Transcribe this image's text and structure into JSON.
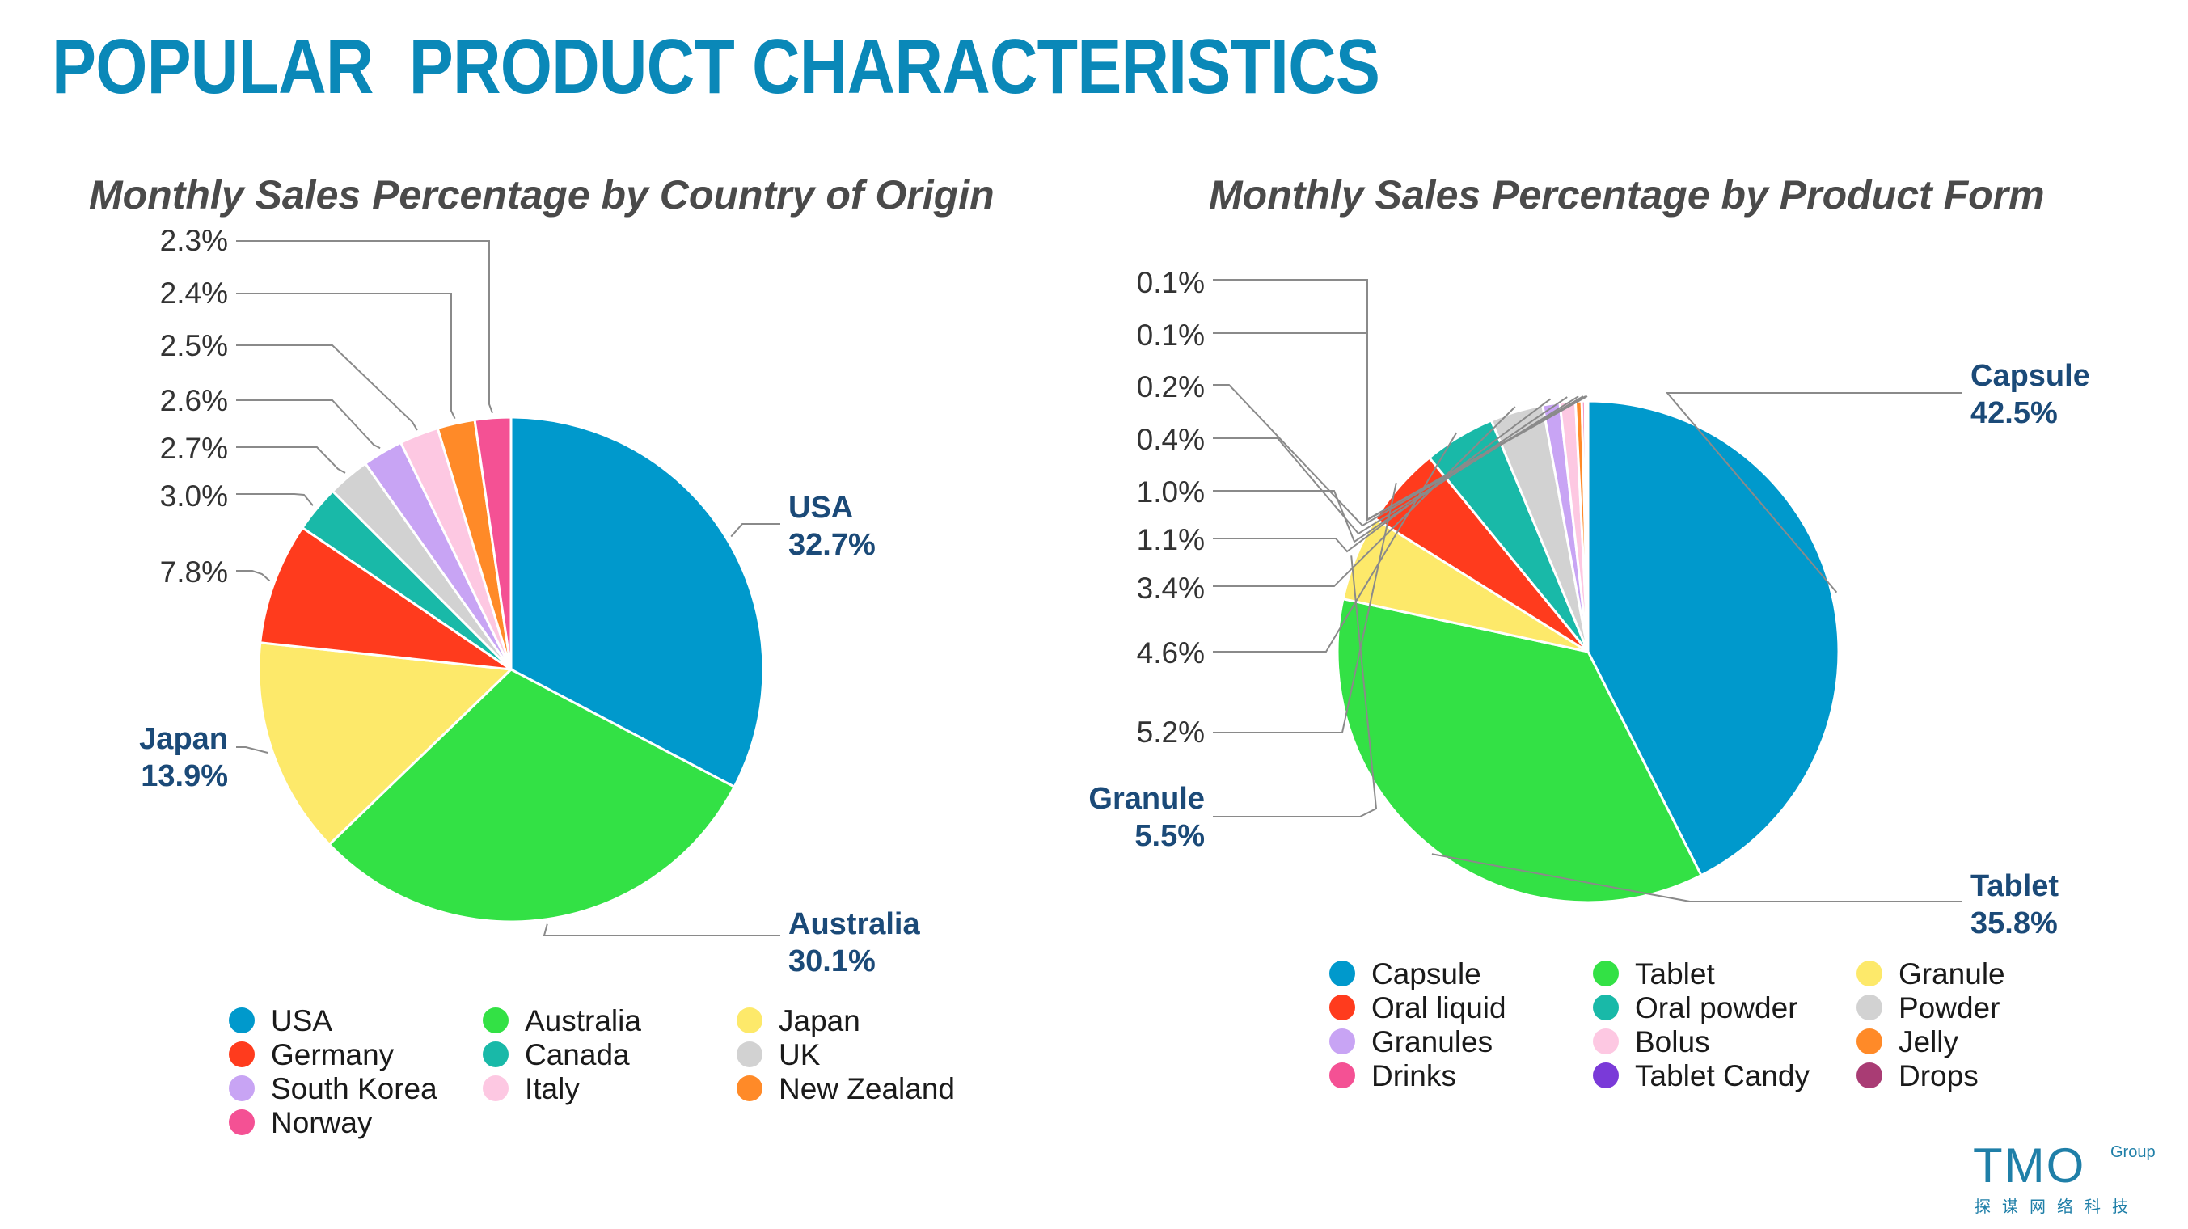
{
  "page": {
    "title": "POPULAR  PRODUCT CHARACTERISTICS"
  },
  "logo": {
    "main": "TMO",
    "group": "Group",
    "subtitle": "探谋网络科技"
  },
  "chart_data": [
    {
      "type": "pie",
      "title": "Monthly Sales Percentage by Country of Origin",
      "unit": "%",
      "slices": [
        {
          "label": "USA",
          "value": 32.7,
          "display": "32.7%",
          "color": "#0099cc",
          "highlight": true
        },
        {
          "label": "Australia",
          "value": 30.1,
          "display": "30.1%",
          "color": "#33e145",
          "highlight": true
        },
        {
          "label": "Japan",
          "value": 13.9,
          "display": "13.9%",
          "color": "#fde96a",
          "highlight": true
        },
        {
          "label": "Germany",
          "value": 7.8,
          "display": "7.8%",
          "color": "#ff3b1d",
          "highlight": false
        },
        {
          "label": "Canada",
          "value": 3.0,
          "display": "3.0%",
          "color": "#19b9a8",
          "highlight": false
        },
        {
          "label": "UK",
          "value": 2.7,
          "display": "2.7%",
          "color": "#d2d2d2",
          "highlight": false
        },
        {
          "label": "South Korea",
          "value": 2.6,
          "display": "2.6%",
          "color": "#c8a4f4",
          "highlight": false
        },
        {
          "label": "Italy",
          "value": 2.5,
          "display": "2.5%",
          "color": "#fdc8e2",
          "highlight": false
        },
        {
          "label": "New Zealand",
          "value": 2.4,
          "display": "2.4%",
          "color": "#ff8a28",
          "highlight": false
        },
        {
          "label": "Norway",
          "value": 2.3,
          "display": "2.3%",
          "color": "#f45194",
          "highlight": false
        }
      ],
      "legend": [
        {
          "label": "USA",
          "color": "#0099cc"
        },
        {
          "label": "Australia",
          "color": "#33e145"
        },
        {
          "label": "Japan",
          "color": "#fde96a"
        },
        {
          "label": "Germany",
          "color": "#ff3b1d"
        },
        {
          "label": "Canada",
          "color": "#19b9a8"
        },
        {
          "label": "UK",
          "color": "#d2d2d2"
        },
        {
          "label": "South Korea",
          "color": "#c8a4f4"
        },
        {
          "label": "Italy",
          "color": "#fdc8e2"
        },
        {
          "label": "New Zealand",
          "color": "#ff8a28"
        },
        {
          "label": "Norway",
          "color": "#f45194"
        }
      ],
      "legend_placement": "bottom"
    },
    {
      "type": "pie",
      "title": "Monthly Sales Percentage by Product Form",
      "unit": "%",
      "slices": [
        {
          "label": "Capsule",
          "value": 42.5,
          "display": "42.5%",
          "color": "#0099cc",
          "highlight": true
        },
        {
          "label": "Tablet",
          "value": 35.8,
          "display": "35.8%",
          "color": "#33e145",
          "highlight": true
        },
        {
          "label": "Granule",
          "value": 5.5,
          "display": "5.5%",
          "color": "#fde96a",
          "highlight": true
        },
        {
          "label": "Oral liquid",
          "value": 5.2,
          "display": "5.2%",
          "color": "#ff3b1d",
          "highlight": false
        },
        {
          "label": "Oral powder",
          "value": 4.6,
          "display": "4.6%",
          "color": "#19b9a8",
          "highlight": false
        },
        {
          "label": "Powder",
          "value": 3.4,
          "display": "3.4%",
          "color": "#d2d2d2",
          "highlight": false
        },
        {
          "label": "Granules",
          "value": 1.1,
          "display": "1.1%",
          "color": "#c8a4f4",
          "highlight": false
        },
        {
          "label": "Bolus",
          "value": 1.0,
          "display": "1.0%",
          "color": "#fdc8e2",
          "highlight": false
        },
        {
          "label": "Jelly",
          "value": 0.4,
          "display": "0.4%",
          "color": "#ff8a28",
          "highlight": false
        },
        {
          "label": "Drinks",
          "value": 0.2,
          "display": "0.2%",
          "color": "#f45194",
          "highlight": false
        },
        {
          "label": "Tablet Candy",
          "value": 0.1,
          "display": "0.1%",
          "color": "#7a3ad8",
          "highlight": false
        },
        {
          "label": "Drops",
          "value": 0.1,
          "display": "0.1%",
          "color": "#a93c74",
          "highlight": false
        }
      ],
      "legend": [
        {
          "label": "Capsule",
          "color": "#0099cc"
        },
        {
          "label": "Tablet",
          "color": "#33e145"
        },
        {
          "label": "Granule",
          "color": "#fde96a"
        },
        {
          "label": "Oral liquid",
          "color": "#ff3b1d"
        },
        {
          "label": "Oral powder",
          "color": "#19b9a8"
        },
        {
          "label": "Powder",
          "color": "#d2d2d2"
        },
        {
          "label": "Granules",
          "color": "#c8a4f4"
        },
        {
          "label": "Bolus",
          "color": "#fdc8e2"
        },
        {
          "label": "Jelly",
          "color": "#ff8a28"
        },
        {
          "label": "Drinks",
          "color": "#f45194"
        },
        {
          "label": "Tablet Candy",
          "color": "#7a3ad8"
        },
        {
          "label": "Drops",
          "color": "#a93c74"
        }
      ],
      "legend_placement": "bottom"
    }
  ]
}
